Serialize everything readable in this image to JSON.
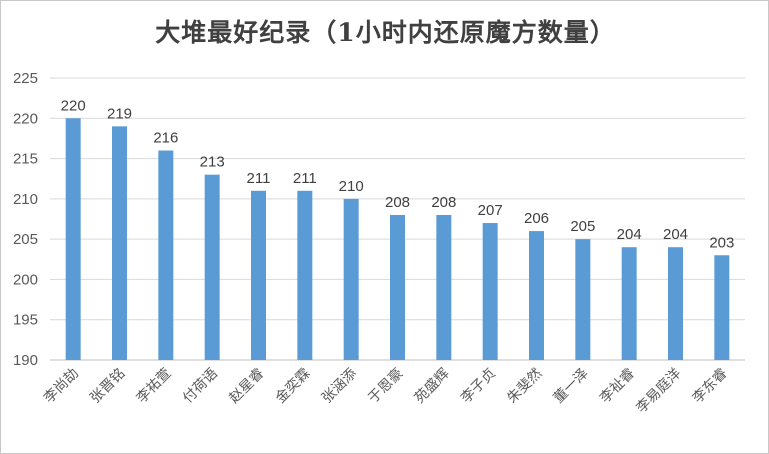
{
  "chart_data": {
    "type": "bar",
    "title": "大堆最好纪录（1小时内还原魔方数量）",
    "xlabel": "",
    "ylabel": "",
    "categories": [
      "李尚劼",
      "张晋铭",
      "李祐萱",
      "付荷语",
      "赵星睿",
      "金奕霖",
      "张涵添",
      "于恩豪",
      "苑盛辉",
      "李子贞",
      "朱斐然",
      "董一泽",
      "李祉睿",
      "李易庭洋",
      "李东睿"
    ],
    "values": [
      220,
      219,
      216,
      213,
      211,
      211,
      210,
      208,
      208,
      207,
      206,
      205,
      204,
      204,
      203
    ],
    "ylim": [
      190,
      225
    ],
    "yticks": [
      190,
      195,
      200,
      205,
      210,
      215,
      220,
      225
    ],
    "bar_color": "#5b9bd5",
    "grid": true,
    "data_labels": true
  }
}
